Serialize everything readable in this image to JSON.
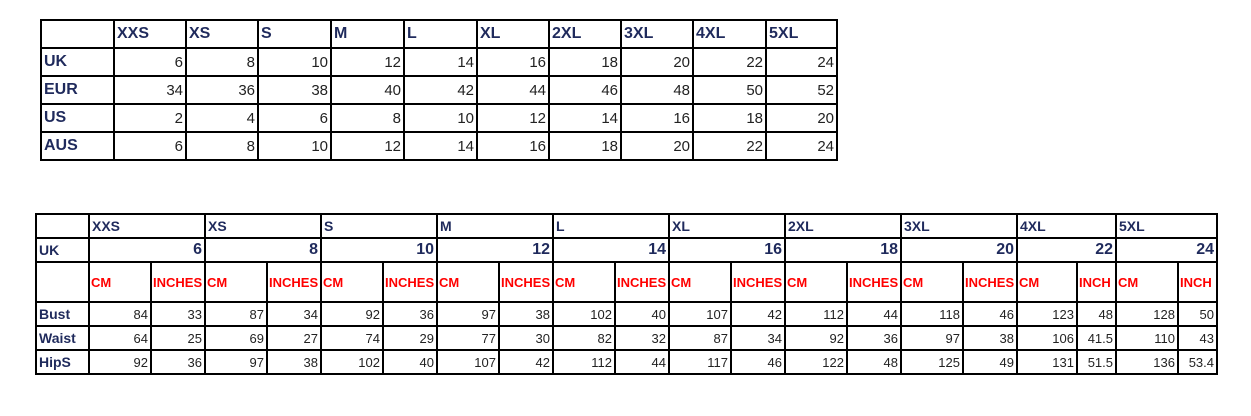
{
  "conversion_table": {
    "sizes": [
      "XXS",
      "XS",
      "S",
      "M",
      "L",
      "XL",
      "2XL",
      "3XL",
      "4XL",
      "5XL"
    ],
    "rows": [
      {
        "label": "UK",
        "values": [
          6,
          8,
          10,
          12,
          14,
          16,
          18,
          20,
          22,
          24
        ]
      },
      {
        "label": "EUR",
        "values": [
          34,
          36,
          38,
          40,
          42,
          44,
          46,
          48,
          50,
          52
        ]
      },
      {
        "label": "US",
        "values": [
          2,
          4,
          6,
          8,
          10,
          12,
          14,
          16,
          18,
          20
        ]
      },
      {
        "label": "AUS",
        "values": [
          6,
          8,
          10,
          12,
          14,
          16,
          18,
          20,
          22,
          24
        ]
      }
    ]
  },
  "measurement_table": {
    "sizes": [
      "XXS",
      "XS",
      "S",
      "M",
      "L",
      "XL",
      "2XL",
      "3XL",
      "4XL",
      "5XL"
    ],
    "uk_label": "UK",
    "uk": [
      6,
      8,
      10,
      12,
      14,
      16,
      18,
      20,
      22,
      24
    ],
    "units": [
      [
        "CM",
        "INCHES"
      ],
      [
        "CM",
        "INCHES"
      ],
      [
        "CM",
        "INCHES"
      ],
      [
        "CM",
        "INCHES"
      ],
      [
        "CM",
        "INCHES"
      ],
      [
        "CM",
        "INCHES"
      ],
      [
        "CM",
        "INCHES"
      ],
      [
        "CM",
        "INCHES"
      ],
      [
        "CM",
        "INCH"
      ],
      [
        "CM",
        "INCH"
      ]
    ],
    "rows": [
      {
        "label": "Bust",
        "values": [
          84,
          33,
          87,
          34,
          92,
          36,
          97,
          38,
          102,
          40,
          107,
          42,
          112,
          44,
          118,
          46,
          123,
          48,
          128,
          50
        ]
      },
      {
        "label": "Waist",
        "values": [
          64,
          25,
          69,
          27,
          74,
          29,
          77,
          30,
          82,
          32,
          87,
          34,
          92,
          36,
          97,
          38,
          106,
          41.5,
          110,
          43
        ]
      },
      {
        "label": "HipS",
        "values": [
          92,
          36,
          97,
          38,
          102,
          40,
          107,
          42,
          112,
          44,
          117,
          46,
          122,
          48,
          125,
          49,
          131,
          51.5,
          136,
          53.4
        ]
      }
    ]
  },
  "colors": {
    "header_text": "#1f2a5c",
    "unit_text": "#ff0000"
  }
}
